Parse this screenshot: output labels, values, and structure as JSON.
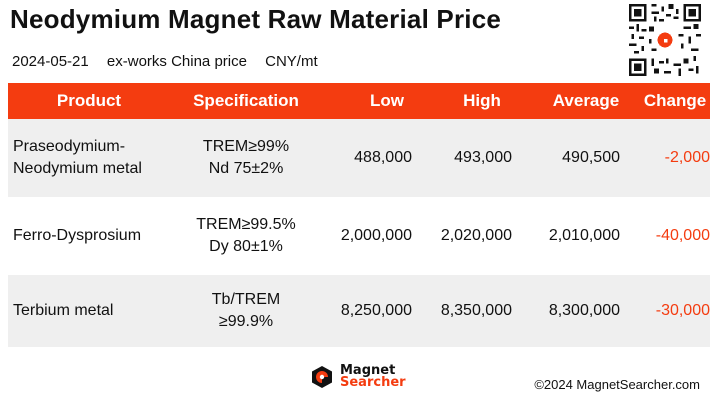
{
  "title": "Neodymium Magnet Raw Material Price",
  "subtitle": {
    "date": "2024-05-21",
    "basis": "ex-works China price",
    "unit": "CNY/mt"
  },
  "table": {
    "headers": [
      "Product",
      "Specification",
      "Low",
      "High",
      "Average",
      "Change"
    ],
    "rows": [
      {
        "product_line1": "Praseodymium-",
        "product_line2": "Neodymium metal",
        "spec_line1": "TREM≥99%",
        "spec_line2": "Nd 75±2%",
        "low": "488,000",
        "high": "493,000",
        "average": "490,500",
        "change": "-2,000"
      },
      {
        "product_line1": "Ferro-Dysprosium",
        "product_line2": "",
        "spec_line1": "TREM≥99.5%",
        "spec_line2": "Dy 80±1%",
        "low": "2,000,000",
        "high": "2,020,000",
        "average": "2,010,000",
        "change": "-40,000"
      },
      {
        "product_line1": "Terbium metal",
        "product_line2": "",
        "spec_line1": "Tb/TREM",
        "spec_line2": "≥99.9%",
        "low": "8,250,000",
        "high": "8,350,000",
        "average": "8,300,000",
        "change": "-30,000"
      }
    ]
  },
  "footer": {
    "logo_line1": "Magnet",
    "logo_line2": "Searcher",
    "copyright": "©2024 MagnetSearcher.com"
  },
  "colors": {
    "accent": "#f43c10",
    "row_shade": "#efefef"
  },
  "icons": {
    "qr": "qr-code-icon",
    "logo": "magnet-searcher-logo-icon"
  }
}
